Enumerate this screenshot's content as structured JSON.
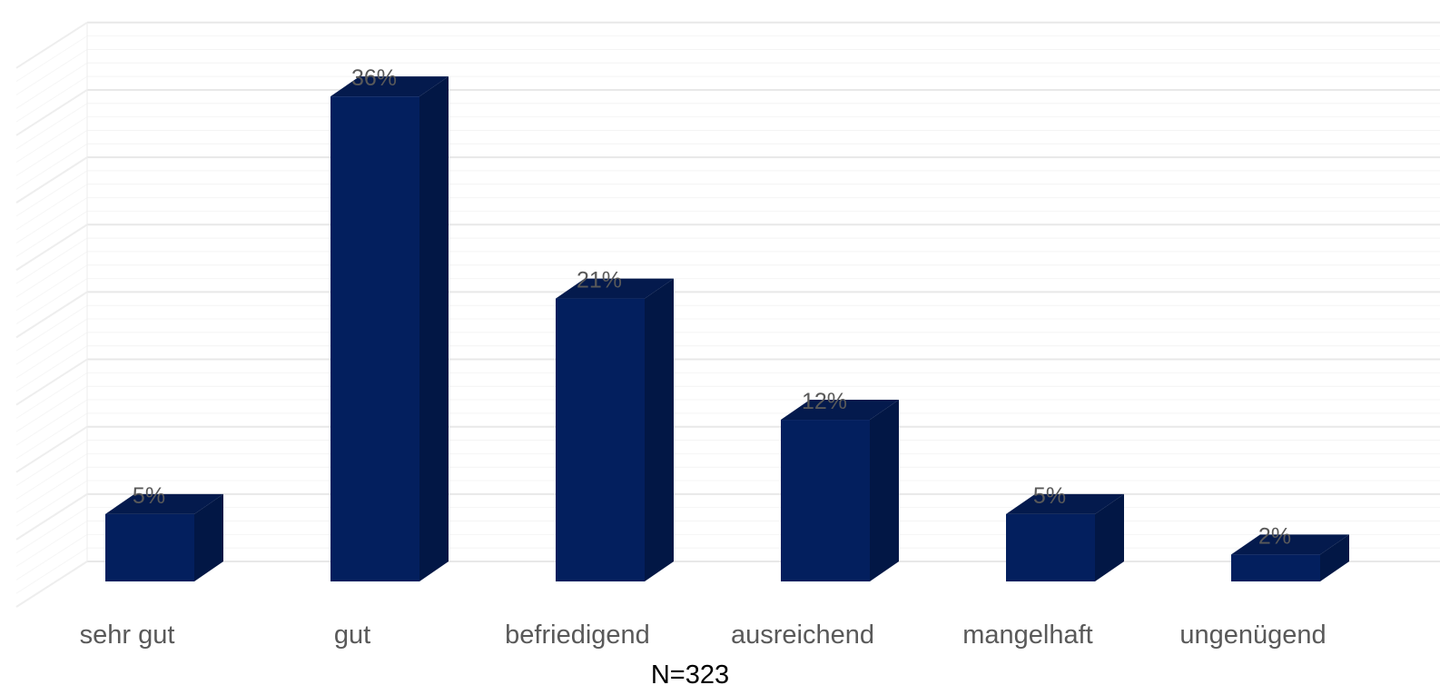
{
  "chart_data": {
    "type": "bar",
    "categories": [
      "sehr gut",
      "gut",
      "befriedigend",
      "ausreichend",
      "mangelhaft",
      "ungenügend"
    ],
    "values": [
      5,
      36,
      21,
      12,
      5,
      2
    ],
    "value_labels": [
      "5%",
      "36%",
      "21%",
      "12%",
      "5%",
      "2%"
    ],
    "unit": "%",
    "ylim": [
      0,
      40
    ],
    "grid": true,
    "style": "3d-column",
    "footnote": "N=323",
    "colors": {
      "front": "#031f5e",
      "side": "#021745",
      "top": "#041a4d",
      "grid": "#e8e8e8",
      "text": "#595959"
    }
  }
}
